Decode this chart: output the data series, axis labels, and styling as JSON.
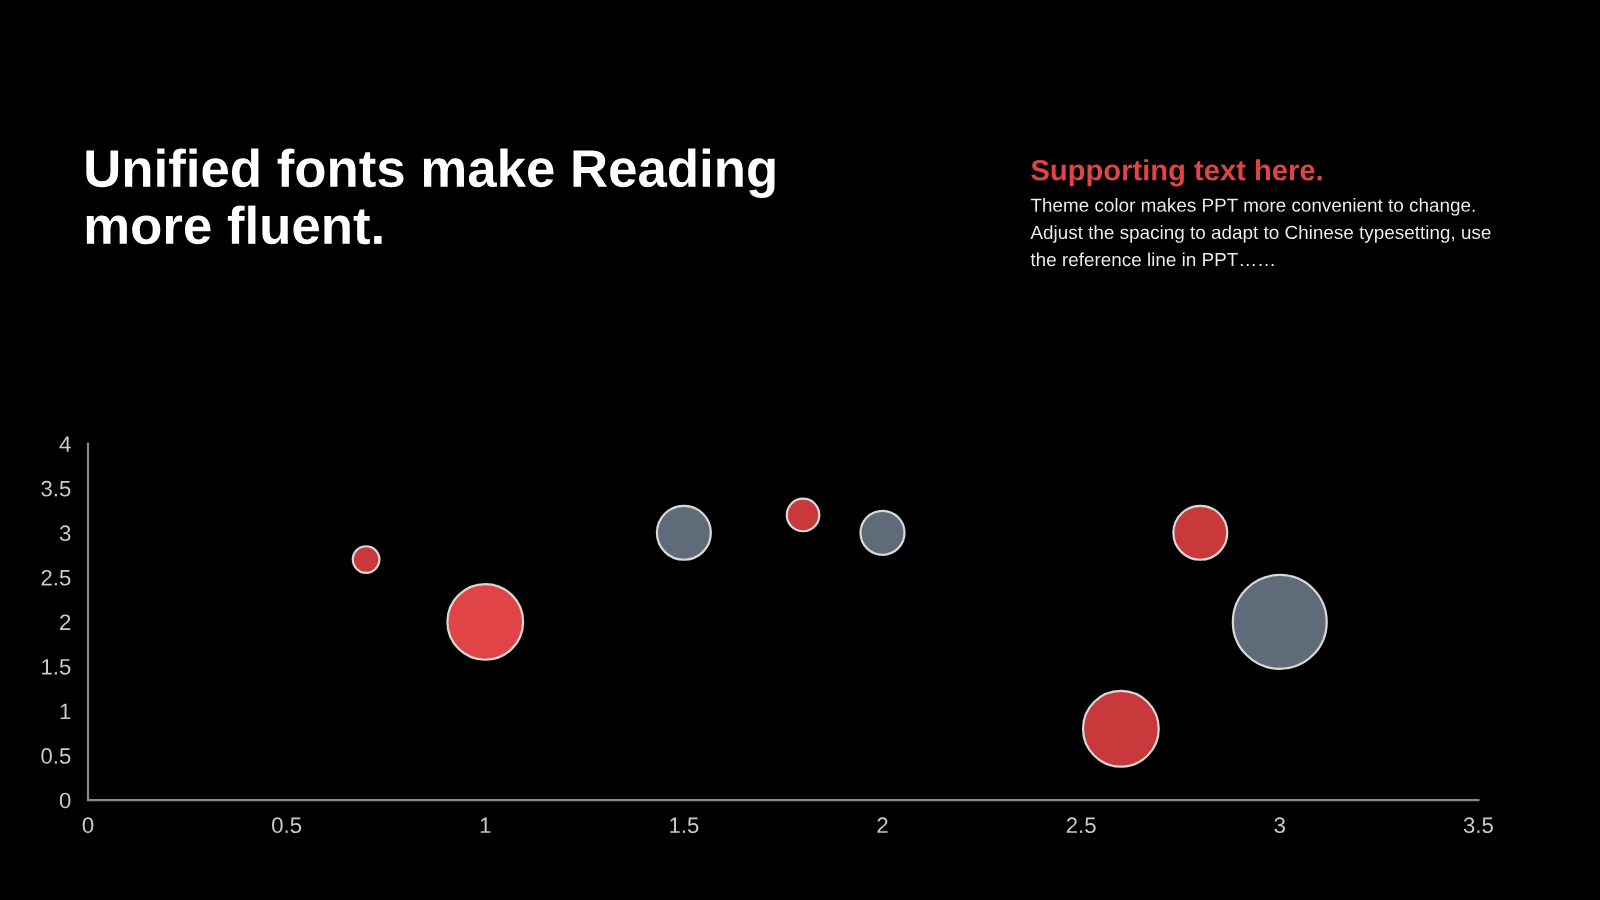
{
  "chart_data": {
    "type": "bubble",
    "title": "Unified fonts make Reading more fluent.",
    "subtitle": "Supporting text here.",
    "annotations": [
      "Theme color makes PPT more convenient to change. Adjust the spacing to adapt to Chinese typesetting, use the reference line in PPT……"
    ],
    "x": [
      0.7,
      1,
      1.5,
      1.8,
      2,
      2.6,
      2.8,
      3
    ],
    "values": [
      2.7,
      2,
      3,
      3.2,
      3,
      0.8,
      3,
      2
    ],
    "sizes": [
      0.08,
      0.65,
      0.33,
      0.12,
      0.22,
      0.65,
      0.33,
      1
    ],
    "colors": [
      "#c9383a",
      "#e04446",
      "#5f6b78",
      "#c9383a",
      "#5f6b78",
      "#c9383a",
      "#c9383a",
      "#5f6b78"
    ],
    "xlim": [
      0,
      3.5
    ],
    "xticks": [
      0,
      0.5,
      1,
      1.5,
      2,
      2.5,
      3,
      3.5
    ],
    "ylim": [
      0,
      4
    ],
    "yticks": [
      0,
      0.5,
      1,
      1.5,
      2,
      2.5,
      3,
      3.5,
      4
    ],
    "grid": false,
    "legend": false
  }
}
